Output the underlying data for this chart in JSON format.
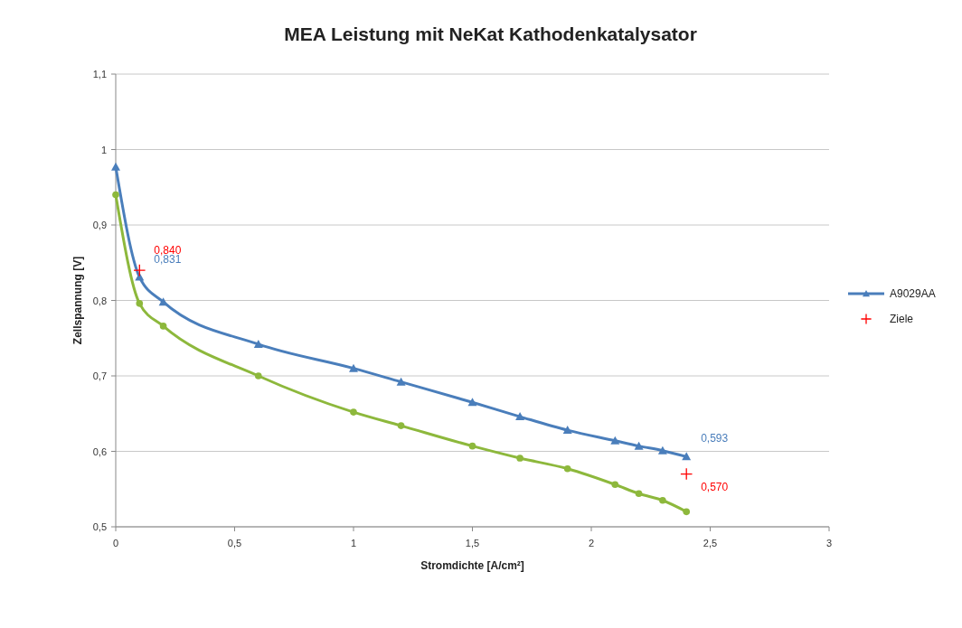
{
  "chart_data": {
    "type": "line",
    "title": "MEA Leistung mit NeKat Kathodenkatalysator",
    "xlabel": "Stromdichte  [A/cm²]",
    "ylabel": "Zellspannung  [V]",
    "xlim": [
      0,
      3
    ],
    "xticks": [
      0,
      {
        "value": 0.5,
        "label": "0,5"
      },
      1,
      {
        "value": 1.5,
        "label": "1,5"
      },
      2,
      {
        "value": 2.5,
        "label": "2,5"
      },
      3
    ],
    "ylim": [
      0.5,
      1.1
    ],
    "yticks": [
      {
        "value": 0.5,
        "label": "0,5"
      },
      {
        "value": 0.6,
        "label": "0,6"
      },
      {
        "value": 0.7,
        "label": "0,7"
      },
      {
        "value": 0.8,
        "label": "0,8"
      },
      {
        "value": 0.9,
        "label": "0,9"
      },
      1,
      {
        "value": 1.1,
        "label": "1,1"
      }
    ],
    "grid": "y",
    "legend": "right",
    "series": [
      {
        "name": "A9029AA",
        "type": "line",
        "color": "#4a7ebb",
        "marker": "triangle",
        "x": [
          0,
          0.1,
          0.2,
          0.6,
          1.0,
          1.2,
          1.5,
          1.7,
          1.9,
          2.1,
          2.2,
          2.3,
          2.4
        ],
        "values": [
          0.977,
          0.831,
          0.798,
          0.742,
          0.71,
          0.692,
          0.665,
          0.646,
          0.628,
          0.614,
          0.607,
          0.601,
          0.593
        ],
        "value_labels": [
          null,
          "0,831",
          null,
          null,
          null,
          null,
          null,
          null,
          null,
          null,
          null,
          null,
          "0,593"
        ]
      },
      {
        "name": "Ziele",
        "type": "scatter",
        "color": "#ff0000",
        "marker": "cross",
        "x": [
          0.1,
          2.4
        ],
        "values": [
          0.84,
          0.57
        ],
        "value_labels": [
          "0,840",
          "0,570"
        ]
      },
      {
        "color": "#8db83c",
        "marker": "circle",
        "x": [
          0,
          0.1,
          0.2,
          0.6,
          1.0,
          1.2,
          1.5,
          1.7,
          1.9,
          2.1,
          2.2,
          2.3,
          2.4
        ],
        "values": [
          0.94,
          0.796,
          0.766,
          0.7,
          0.652,
          0.634,
          0.607,
          0.591,
          0.577,
          0.556,
          0.544,
          0.535,
          0.52
        ]
      }
    ]
  }
}
